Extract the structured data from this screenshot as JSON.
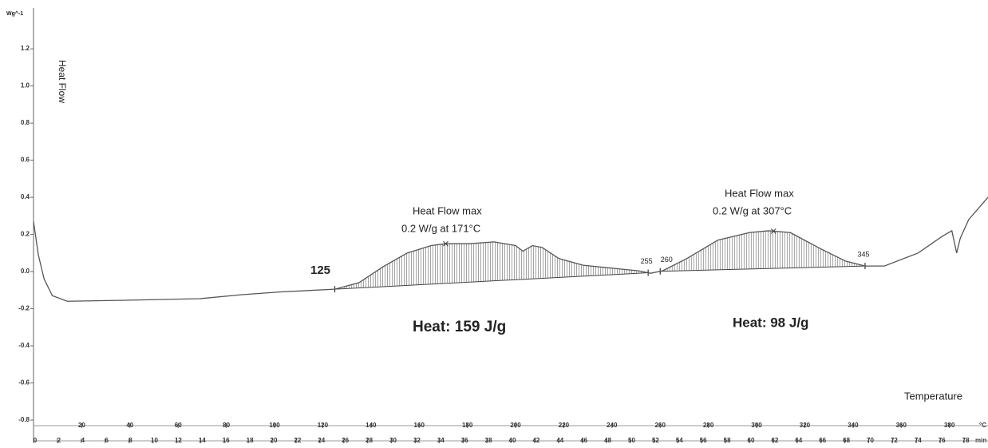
{
  "chart_data": {
    "type": "line",
    "y_unit_label": "Wg^-1",
    "y_axis_label": "Heat Flow",
    "x_axis_label": "Temperature",
    "x_unit_label": "°C",
    "time_unit_label": "min",
    "color": "#555555",
    "x": [
      0,
      2,
      4.4,
      7.8,
      14,
      36,
      69,
      86,
      102,
      125,
      135,
      145,
      155,
      165,
      171,
      181,
      191,
      200,
      203,
      207,
      211,
      218,
      228,
      241,
      251,
      256,
      261,
      271,
      284,
      297,
      305,
      314,
      327,
      337,
      345,
      353,
      367,
      377,
      381,
      383,
      384.5,
      388,
      396
    ],
    "values": [
      0.27,
      0.09,
      -0.04,
      -0.13,
      -0.16,
      -0.155,
      -0.146,
      -0.125,
      -0.11,
      -0.095,
      -0.06,
      0.026,
      0.1,
      0.14,
      0.15,
      0.15,
      0.16,
      0.14,
      0.11,
      0.14,
      0.13,
      0.07,
      0.034,
      0.017,
      0.004,
      -0.009,
      0.004,
      0.07,
      0.17,
      0.21,
      0.22,
      0.21,
      0.12,
      0.056,
      0.03,
      0.03,
      0.1,
      0.19,
      0.22,
      0.1,
      0.18,
      0.28,
      0.4
    ],
    "xlim": [
      0,
      396
    ],
    "xticks": [
      20,
      40,
      60,
      80,
      100,
      120,
      140,
      160,
      180,
      200,
      220,
      240,
      260,
      280,
      300,
      320,
      340,
      360,
      380
    ],
    "timelim": [
      0,
      80
    ],
    "timeticks": [
      0,
      2,
      4,
      6,
      8,
      10,
      12,
      14,
      16,
      18,
      20,
      22,
      24,
      26,
      28,
      30,
      32,
      34,
      36,
      38,
      40,
      42,
      44,
      46,
      48,
      50,
      52,
      54,
      56,
      58,
      60,
      62,
      64,
      66,
      68,
      70,
      72,
      74,
      76,
      78
    ],
    "ylim": [
      -0.83,
      1.42
    ],
    "yticks": [
      -0.8,
      -0.6,
      -0.4,
      -0.2,
      {
        "value": 0,
        "label": "0.0"
      },
      0.2,
      0.4,
      0.6,
      0.8,
      {
        "value": 1,
        "label": "1.0"
      },
      1.2
    ],
    "integrations": [
      {
        "start": 125,
        "end": 255
      },
      {
        "start": 260,
        "end": 345
      }
    ],
    "peak_markers": [
      171,
      307
    ],
    "annotations": [
      {
        "lines": [
          "Heat Flow max",
          "0.2 W/g at 171°C"
        ],
        "heat": "Heat: 159 J/g"
      },
      {
        "lines": [
          "Heat Flow max",
          "0.2 W/g at 307°C"
        ],
        "heat": "Heat: 98 J/g"
      }
    ]
  }
}
